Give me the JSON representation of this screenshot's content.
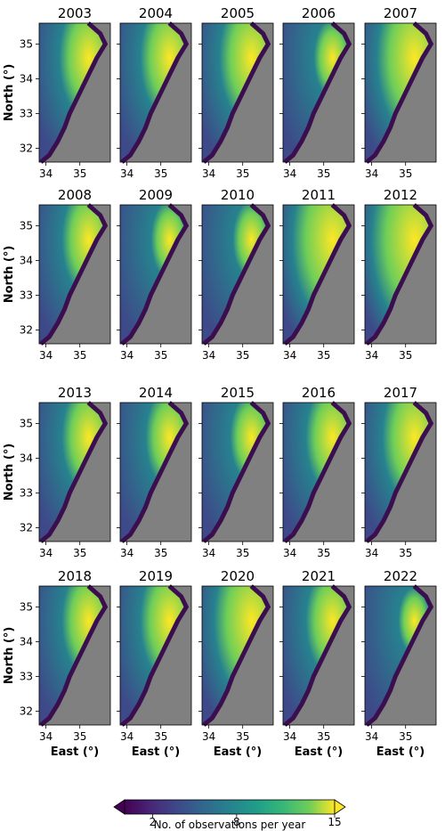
{
  "chart_data": {
    "type": "heatmap",
    "description_units": "No. of observations per year",
    "panels": [
      "2003",
      "2004",
      "2005",
      "2006",
      "2007",
      "2008",
      "2009",
      "2010",
      "2011",
      "2012",
      "2013",
      "2014",
      "2015",
      "2016",
      "2017",
      "2018",
      "2019",
      "2020",
      "2021",
      "2022"
    ],
    "panel_brightness": {
      "2003": 0.55,
      "2004": 0.55,
      "2005": 0.6,
      "2006": 0.35,
      "2007": 0.7,
      "2008": 0.5,
      "2009": 0.35,
      "2010": 0.35,
      "2011": 0.75,
      "2012": 0.8,
      "2013": 0.5,
      "2014": 0.45,
      "2015": 0.4,
      "2016": 0.5,
      "2017": 0.6,
      "2018": 0.5,
      "2019": 0.55,
      "2020": 0.7,
      "2021": 0.5,
      "2022": 0.3
    },
    "ylabel": "North (°)",
    "xlabel": "East (°)",
    "y_ticks": [
      "32",
      "33",
      "34",
      "35"
    ],
    "x_ticks": [
      "34",
      "35"
    ],
    "ylim": [
      31.6,
      35.6
    ],
    "xlim": [
      33.8,
      35.9
    ],
    "colorbar": {
      "label": "No. of observations per year",
      "ticks": [
        "2",
        "8",
        "15"
      ],
      "range": [
        0,
        15
      ],
      "extend": "both",
      "colormap": "viridis"
    },
    "land_color": "#808080",
    "coast_color": "#3b0f4f"
  }
}
